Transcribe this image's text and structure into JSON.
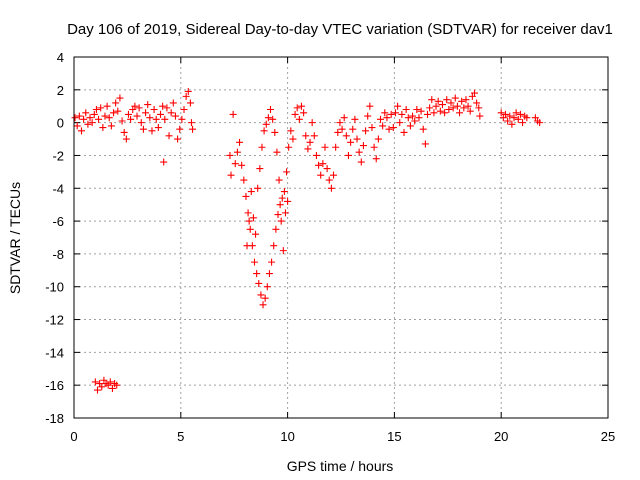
{
  "chart_data": {
    "type": "scatter",
    "title": "Day 106 of 2019, Sidereal Day-to-day VTEC variation (SDTVAR) for receiver dav1",
    "xlabel": "GPS time / hours",
    "ylabel": "SDTVAR / TECUs",
    "xlim": [
      0,
      25
    ],
    "ylim": [
      -18,
      4
    ],
    "xticks": [
      0,
      5,
      10,
      15,
      20,
      25
    ],
    "yticks": [
      -18,
      -16,
      -14,
      -12,
      -10,
      -8,
      -6,
      -4,
      -2,
      0,
      2,
      4
    ],
    "xtick_labels": [
      "0",
      "5",
      "10",
      "15",
      "20",
      "25"
    ],
    "ytick_labels": [
      "-18",
      "-16",
      "-14",
      "-12",
      "-10",
      "-8",
      "-6",
      "-4",
      "-2",
      "0",
      "2",
      "4"
    ],
    "grid": true,
    "marker": "+",
    "color": "#ff0000",
    "series": [
      {
        "name": "sdtvar",
        "points": [
          [
            0.05,
            0.3
          ],
          [
            0.15,
            -0.2
          ],
          [
            0.25,
            0.4
          ],
          [
            0.35,
            -0.5
          ],
          [
            0.45,
            0.2
          ],
          [
            0.55,
            0.6
          ],
          [
            0.65,
            -0.1
          ],
          [
            0.75,
            0.3
          ],
          [
            0.85,
            0.0
          ],
          [
            0.95,
            0.5
          ],
          [
            1.05,
            0.8
          ],
          [
            1.15,
            0.2
          ],
          [
            1.25,
            0.9
          ],
          [
            1.35,
            -0.3
          ],
          [
            1.45,
            0.4
          ],
          [
            1.55,
            1.0
          ],
          [
            1.65,
            0.3
          ],
          [
            1.75,
            -0.2
          ],
          [
            1.85,
            0.6
          ],
          [
            1.95,
            1.2
          ],
          [
            2.05,
            0.7
          ],
          [
            2.15,
            1.5
          ],
          [
            2.25,
            0.1
          ],
          [
            2.35,
            -0.6
          ],
          [
            2.45,
            -1.0
          ],
          [
            2.55,
            0.5
          ],
          [
            2.65,
            0.2
          ],
          [
            2.75,
            0.8
          ],
          [
            2.85,
            1.0
          ],
          [
            2.95,
            0.4
          ],
          [
            3.05,
            0.9
          ],
          [
            3.15,
            0.0
          ],
          [
            3.25,
            -0.4
          ],
          [
            3.35,
            0.6
          ],
          [
            3.45,
            1.1
          ],
          [
            3.55,
            0.3
          ],
          [
            3.65,
            -0.5
          ],
          [
            3.75,
            0.8
          ],
          [
            3.85,
            0.2
          ],
          [
            3.95,
            -0.3
          ],
          [
            4.05,
            0.5
          ],
          [
            4.15,
            1.0
          ],
          [
            4.2,
            -2.4
          ],
          [
            4.25,
            0.2
          ],
          [
            4.35,
            0.9
          ],
          [
            4.45,
            -0.8
          ],
          [
            4.55,
            0.6
          ],
          [
            4.65,
            1.2
          ],
          [
            4.75,
            0.4
          ],
          [
            4.85,
            -1.0
          ],
          [
            4.95,
            -0.4
          ],
          [
            5.05,
            0.2
          ],
          [
            5.15,
            0.8
          ],
          [
            5.25,
            1.6
          ],
          [
            5.35,
            1.9
          ],
          [
            5.45,
            1.2
          ],
          [
            5.5,
            0.0
          ],
          [
            5.55,
            -0.4
          ],
          [
            1.0,
            -15.8
          ],
          [
            1.1,
            -16.3
          ],
          [
            1.2,
            -15.9
          ],
          [
            1.3,
            -16.1
          ],
          [
            1.4,
            -15.7
          ],
          [
            1.5,
            -15.9
          ],
          [
            1.6,
            -16.0
          ],
          [
            1.7,
            -15.8
          ],
          [
            1.8,
            -16.2
          ],
          [
            1.9,
            -15.9
          ],
          [
            2.0,
            -16.0
          ],
          [
            7.3,
            -2.0
          ],
          [
            7.35,
            -3.2
          ],
          [
            7.45,
            0.5
          ],
          [
            7.55,
            -2.5
          ],
          [
            7.65,
            -1.8
          ],
          [
            7.75,
            -1.2
          ],
          [
            7.85,
            -2.6
          ],
          [
            7.95,
            -3.5
          ],
          [
            8.05,
            -4.5
          ],
          [
            8.15,
            -5.5
          ],
          [
            8.25,
            -6.5
          ],
          [
            8.35,
            -7.5
          ],
          [
            8.45,
            -8.5
          ],
          [
            8.55,
            -9.2
          ],
          [
            8.65,
            -9.8
          ],
          [
            8.75,
            -10.5
          ],
          [
            8.85,
            -11.1
          ],
          [
            8.95,
            -10.7
          ],
          [
            9.05,
            -10.0
          ],
          [
            9.15,
            -9.2
          ],
          [
            9.25,
            -8.5
          ],
          [
            9.35,
            -7.5
          ],
          [
            9.45,
            -6.5
          ],
          [
            9.55,
            -5.6
          ],
          [
            9.65,
            -5.0
          ],
          [
            9.75,
            -4.6
          ],
          [
            9.85,
            -4.2
          ],
          [
            9.95,
            -3.0
          ],
          [
            10.05,
            -1.5
          ],
          [
            10.15,
            -0.5
          ],
          [
            8.1,
            -7.5
          ],
          [
            8.2,
            -6.0
          ],
          [
            8.3,
            -4.2
          ],
          [
            8.4,
            -5.8
          ],
          [
            8.5,
            -6.8
          ],
          [
            8.6,
            -4.0
          ],
          [
            8.7,
            -2.8
          ],
          [
            8.8,
            -1.5
          ],
          [
            8.9,
            -0.5
          ],
          [
            9.0,
            -0.1
          ],
          [
            9.1,
            0.3
          ],
          [
            9.2,
            0.8
          ],
          [
            9.3,
            0.2
          ],
          [
            9.4,
            -0.6
          ],
          [
            9.5,
            -1.8
          ],
          [
            9.6,
            -3.5
          ],
          [
            9.7,
            -6.0
          ],
          [
            9.8,
            -7.8
          ],
          [
            9.9,
            -5.5
          ],
          [
            10.0,
            -4.8
          ],
          [
            10.25,
            -1.0
          ],
          [
            10.35,
            0.5
          ],
          [
            10.45,
            0.9
          ],
          [
            10.55,
            0.2
          ],
          [
            10.65,
            1.0
          ],
          [
            10.75,
            0.6
          ],
          [
            10.85,
            -0.8
          ],
          [
            10.95,
            -1.6
          ],
          [
            11.05,
            -1.2
          ],
          [
            11.15,
            0.0
          ],
          [
            11.25,
            -0.8
          ],
          [
            11.35,
            -2.0
          ],
          [
            11.45,
            -2.6
          ],
          [
            11.55,
            -3.2
          ],
          [
            11.65,
            -2.5
          ],
          [
            11.75,
            -1.5
          ],
          [
            11.85,
            -2.8
          ],
          [
            11.95,
            -3.5
          ],
          [
            12.05,
            -4.0
          ],
          [
            12.15,
            -3.2
          ],
          [
            12.25,
            -1.5
          ],
          [
            12.35,
            -0.6
          ],
          [
            12.45,
            0.0
          ],
          [
            12.55,
            -0.4
          ],
          [
            12.65,
            0.3
          ],
          [
            12.75,
            -0.8
          ],
          [
            12.85,
            -2.0
          ],
          [
            12.95,
            -1.2
          ],
          [
            13.05,
            -0.4
          ],
          [
            13.15,
            0.2
          ],
          [
            13.25,
            -1.0
          ],
          [
            13.35,
            -1.8
          ],
          [
            13.45,
            -2.4
          ],
          [
            13.55,
            -1.4
          ],
          [
            13.65,
            -0.5
          ],
          [
            13.75,
            0.4
          ],
          [
            13.85,
            1.0
          ],
          [
            13.95,
            -0.3
          ],
          [
            14.05,
            -1.5
          ],
          [
            14.15,
            -2.2
          ],
          [
            14.25,
            -1.0
          ],
          [
            14.35,
            0.2
          ],
          [
            14.45,
            -0.2
          ],
          [
            14.55,
            0.6
          ],
          [
            14.65,
            0.3
          ],
          [
            14.75,
            -0.4
          ],
          [
            14.85,
            0.5
          ],
          [
            14.95,
            -0.3
          ],
          [
            15.05,
            0.6
          ],
          [
            15.15,
            1.0
          ],
          [
            15.25,
            0.0
          ],
          [
            15.35,
            0.5
          ],
          [
            15.45,
            -0.6
          ],
          [
            15.55,
            0.8
          ],
          [
            15.65,
            0.3
          ],
          [
            15.75,
            -0.2
          ],
          [
            15.85,
            0.4
          ],
          [
            15.95,
            0.1
          ],
          [
            16.05,
            0.8
          ],
          [
            16.15,
            0.3
          ],
          [
            16.25,
            0.7
          ],
          [
            16.35,
            -0.4
          ],
          [
            16.45,
            -1.3
          ],
          [
            16.55,
            0.5
          ],
          [
            16.65,
            0.9
          ],
          [
            16.75,
            1.4
          ],
          [
            16.85,
            0.6
          ],
          [
            16.95,
            1.0
          ],
          [
            17.05,
            1.3
          ],
          [
            17.15,
            0.7
          ],
          [
            17.25,
            1.1
          ],
          [
            17.35,
            0.6
          ],
          [
            17.45,
            1.4
          ],
          [
            17.55,
            0.8
          ],
          [
            17.65,
            1.2
          ],
          [
            17.75,
            0.9
          ],
          [
            17.85,
            1.5
          ],
          [
            17.95,
            1.0
          ],
          [
            18.05,
            0.6
          ],
          [
            18.15,
            1.3
          ],
          [
            18.25,
            0.9
          ],
          [
            18.35,
            1.4
          ],
          [
            18.45,
            1.0
          ],
          [
            18.55,
            0.7
          ],
          [
            18.65,
            1.6
          ],
          [
            18.75,
            1.8
          ],
          [
            18.85,
            1.2
          ],
          [
            18.95,
            0.9
          ],
          [
            19.0,
            0.4
          ],
          [
            20.0,
            0.6
          ],
          [
            20.1,
            0.3
          ],
          [
            20.2,
            0.5
          ],
          [
            20.3,
            0.1
          ],
          [
            20.4,
            0.4
          ],
          [
            20.5,
            -0.1
          ],
          [
            20.6,
            0.3
          ],
          [
            20.7,
            0.6
          ],
          [
            20.8,
            0.2
          ],
          [
            20.9,
            0.5
          ],
          [
            21.0,
            0.0
          ],
          [
            21.1,
            0.4
          ],
          [
            21.2,
            0.3
          ],
          [
            21.6,
            0.3
          ],
          [
            21.7,
            0.1
          ],
          [
            21.8,
            0.0
          ]
        ]
      }
    ]
  }
}
